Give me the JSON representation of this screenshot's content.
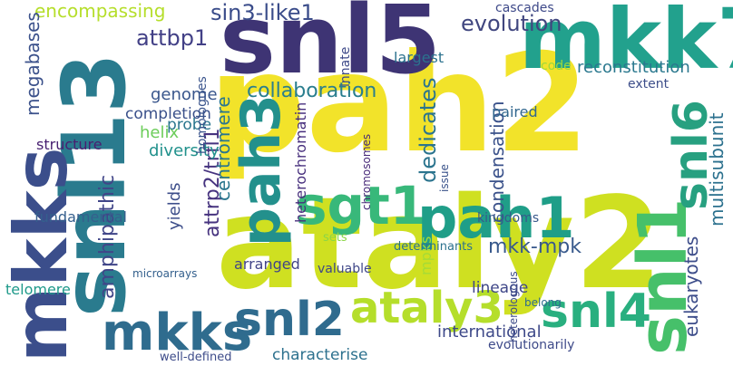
{
  "words": [
    {
      "text": "pah2",
      "color": "#f2e32a"
    },
    {
      "text": "ataly2",
      "color": "#cfe021"
    },
    {
      "text": "snl5",
      "color": "#3e3474"
    },
    {
      "text": "mkk7",
      "color": "#22a18d"
    },
    {
      "text": "snl13",
      "color": "#2a7b8e"
    },
    {
      "text": "mkks",
      "color": "#3b4e8b"
    },
    {
      "text": "mkks",
      "color": "#2f6c8e"
    },
    {
      "text": "snl1",
      "color": "#46c06a"
    },
    {
      "text": "pah3",
      "color": "#23908c"
    },
    {
      "text": "sgt1",
      "color": "#38b87a"
    },
    {
      "text": "pah1",
      "color": "#1f9e88"
    },
    {
      "text": "snl2",
      "color": "#2f6b8e"
    },
    {
      "text": "snl4",
      "color": "#29af7f"
    },
    {
      "text": "snl6",
      "color": "#27a080"
    },
    {
      "text": "ataly3",
      "color": "#b5de2b"
    },
    {
      "text": "collaboration",
      "color": "#2a7e8e"
    },
    {
      "text": "evolution",
      "color": "#40467f"
    },
    {
      "text": "sin3-like1",
      "color": "#3a4c8a"
    },
    {
      "text": "attbp1",
      "color": "#424086"
    },
    {
      "text": "encompassing",
      "color": "#b5de2b"
    },
    {
      "text": "megabases",
      "color": "#3b518b"
    },
    {
      "text": "amphipathic",
      "color": "#404588"
    },
    {
      "text": "attrp2/trfl1",
      "color": "#46337f"
    },
    {
      "text": "centromere",
      "color": "#2a768e"
    },
    {
      "text": "dedicates",
      "color": "#2b748e"
    },
    {
      "text": "condensation",
      "color": "#3b528b"
    },
    {
      "text": "multisubunit",
      "color": "#2c718e"
    },
    {
      "text": "eukaryotes",
      "color": "#3d4d8a"
    },
    {
      "text": "mkk-mpk",
      "color": "#38598c"
    },
    {
      "text": "reconstitution",
      "color": "#2a788e"
    },
    {
      "text": "heterochromatin",
      "color": "#472f7d"
    },
    {
      "text": "international",
      "color": "#3e4989"
    },
    {
      "text": "characterise",
      "color": "#2d718e"
    },
    {
      "text": "lineage",
      "color": "#3f4788"
    },
    {
      "text": "helix",
      "color": "#6ccd5a"
    },
    {
      "text": "diversity",
      "color": "#21918c"
    },
    {
      "text": "genome",
      "color": "#39568c"
    },
    {
      "text": "completion",
      "color": "#3b518b"
    },
    {
      "text": "probe",
      "color": "#2a768e"
    },
    {
      "text": "structure",
      "color": "#482071"
    },
    {
      "text": "fundamental",
      "color": "#355f8d"
    },
    {
      "text": "telomere",
      "color": "#1f9a8a"
    },
    {
      "text": "well-defined",
      "color": "#3e4c8a"
    },
    {
      "text": "valuable",
      "color": "#3f4788"
    },
    {
      "text": "arranged",
      "color": "#414487"
    },
    {
      "text": "yields",
      "color": "#3d4e8a"
    },
    {
      "text": "largest",
      "color": "#2c728e"
    },
    {
      "text": "innate",
      "color": "#3e4a89"
    },
    {
      "text": "kingdoms",
      "color": "#38598c"
    },
    {
      "text": "mpks",
      "color": "#a5db36"
    },
    {
      "text": "homologues",
      "color": "#3a548c"
    },
    {
      "text": "paired",
      "color": "#31678e"
    },
    {
      "text": "code",
      "color": "#9dd93b"
    },
    {
      "text": "cascades",
      "color": "#3e4989"
    },
    {
      "text": "extent",
      "color": "#3d4e8a"
    },
    {
      "text": "evolutionarily",
      "color": "#3e4a89"
    },
    {
      "text": "determinants",
      "color": "#2c728e"
    },
    {
      "text": "belong",
      "color": "#2f6b8e"
    },
    {
      "text": "microarrays",
      "color": "#34608d"
    },
    {
      "text": "chromosomes",
      "color": "#472878"
    },
    {
      "text": "issue",
      "color": "#3a538b"
    },
    {
      "text": "heterologous",
      "color": "#3e4c8a"
    },
    {
      "text": "sets",
      "color": "#8bd646"
    }
  ]
}
